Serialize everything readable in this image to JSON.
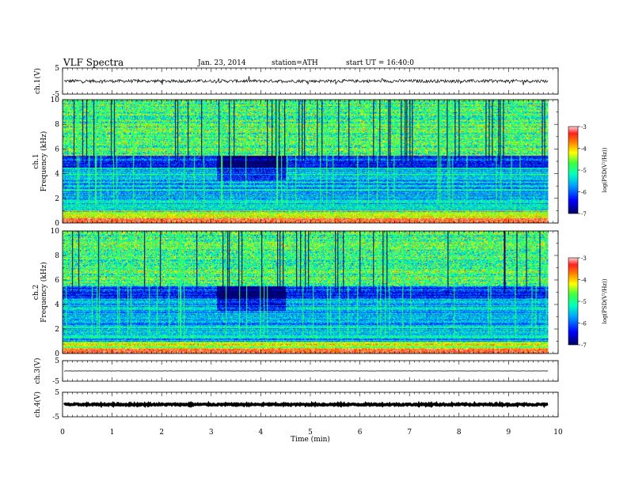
{
  "header": {
    "title": "VLF Spectra",
    "date": "Jan. 23, 2014",
    "station": "station=ATH",
    "start": "start UT = 16:40:0"
  },
  "chart_data": [
    {
      "type": "line",
      "panel": "ch1",
      "ylabel": "ch.1(V)",
      "ylim": [
        -5,
        5
      ],
      "yticks": [
        "5",
        "-5"
      ],
      "xlim": [
        0,
        10
      ],
      "description_values": {
        "baseline": 0,
        "typical_amplitude": 1
      }
    },
    {
      "type": "heatmap",
      "panel": "ch1-spectrogram",
      "ylabel": "ch.1",
      "ylabel2": "Frequency (kHz)",
      "ylim": [
        0,
        10
      ],
      "yticks": [
        "0",
        "2",
        "4",
        "6",
        "8",
        "10"
      ],
      "xlim": [
        0,
        10
      ],
      "colorbar": {
        "label": "log(PSD(V²/Hz))",
        "range": [
          -7,
          -3
        ],
        "ticks": [
          "-3",
          "-4",
          "-5",
          "-6",
          "-7"
        ]
      },
      "events": {
        "quiet_region_x": [
          3.1,
          4.5
        ],
        "data_end_x": 9.8
      }
    },
    {
      "type": "heatmap",
      "panel": "ch2-spectrogram",
      "ylabel": "ch.2",
      "ylabel2": "Frequency (kHz)",
      "ylim": [
        0,
        10
      ],
      "yticks": [
        "0",
        "2",
        "4",
        "6",
        "8",
        "10"
      ],
      "xlim": [
        0,
        10
      ],
      "colorbar": {
        "label": "log(PSD(V²/Hz))",
        "range": [
          -7,
          -3
        ],
        "ticks": [
          "-3",
          "-4",
          "-5",
          "-6",
          "-7"
        ]
      },
      "events": {
        "quiet_region_x": [
          3.1,
          4.5
        ],
        "data_end_x": 9.8
      }
    },
    {
      "type": "line",
      "panel": "ch3",
      "ylabel": "ch.3(V)",
      "ylim": [
        -5,
        5
      ],
      "yticks": [
        "5",
        "-5"
      ],
      "xlim": [
        0,
        10
      ],
      "description_values": {
        "baseline": 0,
        "typical_amplitude": 0.1
      }
    },
    {
      "type": "line",
      "panel": "ch4",
      "ylabel": "ch.4(V)",
      "ylim": [
        -5,
        5
      ],
      "yticks": [
        "5",
        "-5"
      ],
      "xlim": [
        0,
        10
      ],
      "description_values": {
        "baseline": 0,
        "typical_amplitude": 0.5
      }
    }
  ],
  "xaxis": {
    "label": "Time (min)",
    "ticks": [
      "0",
      "1",
      "2",
      "3",
      "4",
      "5",
      "6",
      "7",
      "8",
      "9",
      "10"
    ]
  }
}
